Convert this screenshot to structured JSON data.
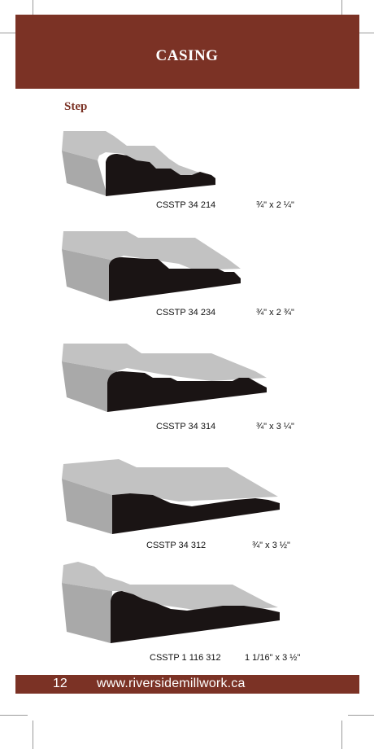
{
  "header": {
    "title": "CASING"
  },
  "section": {
    "label": "Step"
  },
  "profiles": [
    {
      "code": "CSSTP 34 214",
      "size_text": "¾\" x 2 ¼\""
    },
    {
      "code": "CSSTP 34 234",
      "size_text": "¾\" x 2 ¾\""
    },
    {
      "code": "CSSTP 34 314",
      "size_text": "¾\" x 3 ¼\""
    },
    {
      "code": "CSSTP 34 312",
      "size_text": "¾\" x 3 ½\""
    },
    {
      "code": "CSSTP 1 116 312",
      "size_text": "1 1/16\" x 3 ½\""
    }
  ],
  "footer": {
    "page_number": "12",
    "website": "www.riversidemillwork.ca"
  },
  "colors": {
    "brand": "#7b3225",
    "profile_face": "#1a1414",
    "profile_top": "#b9b9b9"
  }
}
